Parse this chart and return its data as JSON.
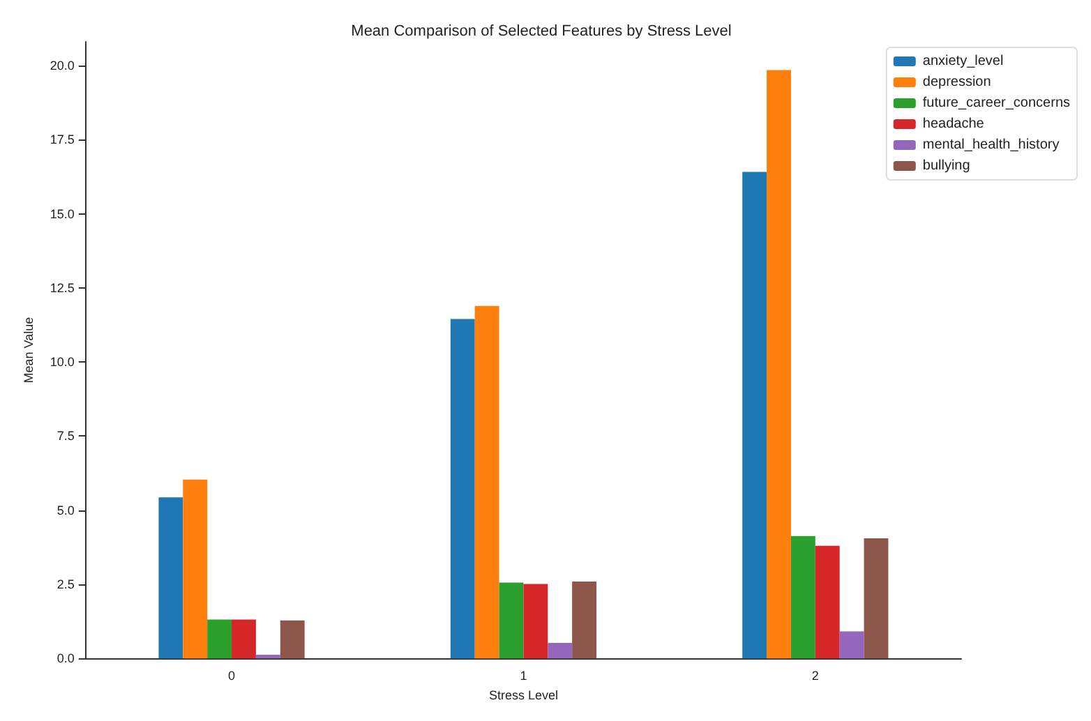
{
  "chart_data": {
    "type": "bar",
    "title": "Mean Comparison of Selected Features by Stress Level",
    "xlabel": "Stress Level",
    "ylabel": "Mean Value",
    "categories": [
      "0",
      "1",
      "2"
    ],
    "series": [
      {
        "name": "anxiety_level",
        "color": "#1f77b4",
        "values": [
          5.43,
          11.45,
          16.41
        ]
      },
      {
        "name": "depression",
        "color": "#ff7f0e",
        "values": [
          6.03,
          11.89,
          19.85
        ]
      },
      {
        "name": "future_career_concerns",
        "color": "#2ca02c",
        "values": [
          1.31,
          2.56,
          4.13
        ]
      },
      {
        "name": "headache",
        "color": "#d62728",
        "values": [
          1.31,
          2.51,
          3.8
        ]
      },
      {
        "name": "mental_health_history",
        "color": "#9467bd",
        "values": [
          0.12,
          0.52,
          0.91
        ]
      },
      {
        "name": "bullying",
        "color": "#8c564b",
        "values": [
          1.28,
          2.59,
          4.05
        ]
      }
    ],
    "ylim": [
      0,
      20.8
    ],
    "yticks": [
      {
        "value": 0,
        "label": "0.0"
      },
      {
        "value": 2.5,
        "label": "2.5"
      },
      {
        "value": 5,
        "label": "5.0"
      },
      {
        "value": 7.5,
        "label": "7.5"
      },
      {
        "value": 10,
        "label": "10.0"
      },
      {
        "value": 12.5,
        "label": "12.5"
      },
      {
        "value": 15,
        "label": "15.0"
      },
      {
        "value": 17.5,
        "label": "17.5"
      },
      {
        "value": 20,
        "label": "20.0"
      }
    ],
    "grid": false,
    "legend": "top right"
  }
}
